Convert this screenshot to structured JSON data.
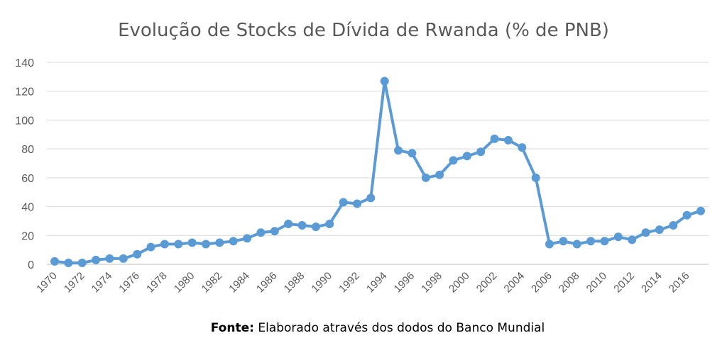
{
  "chart_data": {
    "type": "line",
    "title": "Evolução de Stocks de Dívida de Rwanda (% de PNB)",
    "xlabel": "",
    "ylabel": "",
    "ylim": [
      0,
      140
    ],
    "yticks": [
      0,
      20,
      40,
      60,
      80,
      100,
      120,
      140
    ],
    "xtick_labels": [
      "1970",
      "1972",
      "1974",
      "1976",
      "1978",
      "1980",
      "1982",
      "1984",
      "1986",
      "1988",
      "1990",
      "1992",
      "1994",
      "1996",
      "1998",
      "2000",
      "2002",
      "2004",
      "2006",
      "2008",
      "2010",
      "2012",
      "2014",
      "2016"
    ],
    "grid": true,
    "legend": "none",
    "line_color": "#5B9BD5",
    "x": [
      1970,
      1971,
      1972,
      1973,
      1974,
      1975,
      1976,
      1977,
      1978,
      1979,
      1980,
      1981,
      1982,
      1983,
      1984,
      1985,
      1986,
      1987,
      1988,
      1989,
      1990,
      1991,
      1992,
      1993,
      1994,
      1995,
      1996,
      1997,
      1998,
      1999,
      2000,
      2001,
      2002,
      2003,
      2004,
      2005,
      2006,
      2007,
      2008,
      2009,
      2010,
      2011,
      2012,
      2013,
      2014,
      2015,
      2016,
      2017
    ],
    "series": [
      {
        "values": [
          2,
          1,
          1,
          3,
          4,
          4,
          7,
          12,
          14,
          14,
          15,
          14,
          15,
          16,
          18,
          22,
          23,
          28,
          27,
          26,
          28,
          43,
          42,
          46,
          127,
          79,
          77,
          60,
          62,
          72,
          75,
          78,
          87,
          86,
          81,
          60,
          14,
          16,
          14,
          16,
          16,
          19,
          17,
          22,
          24,
          27,
          34,
          37
        ]
      }
    ]
  },
  "source": {
    "label": "Fonte:",
    "text": " Elaborado através dos dodos do Banco Mundial"
  }
}
